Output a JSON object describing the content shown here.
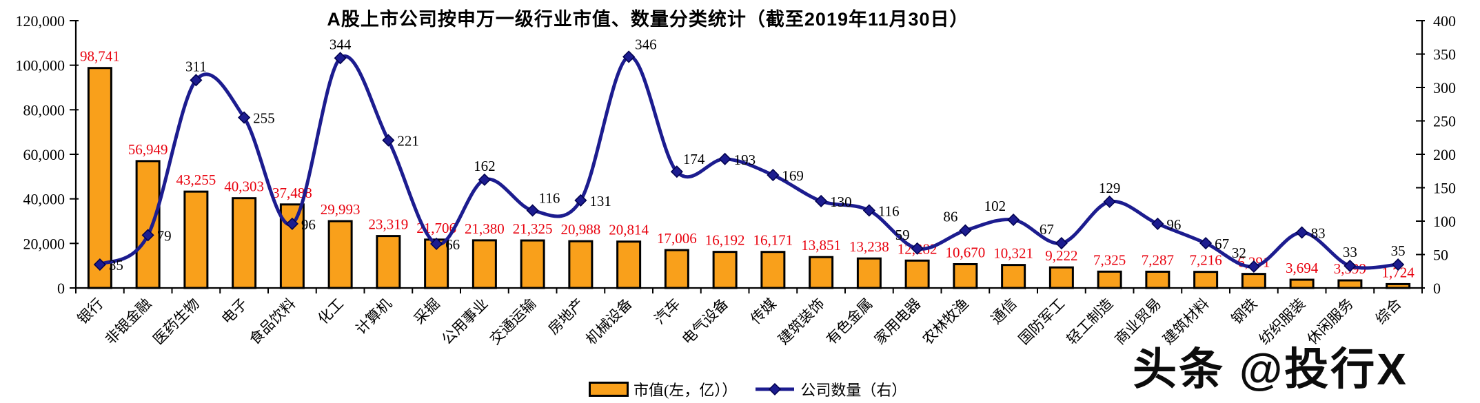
{
  "title": "A股上市公司按申万一级行业市值、数量分类统计（截至2019年11月30日）",
  "legend": {
    "bar_label": "市值(左，亿））",
    "line_label": "公司数量（右）"
  },
  "watermark": "头条 @投行X",
  "colors": {
    "bar_fill": "#F9A01B",
    "bar_border": "#000000",
    "line": "#1C1C8F",
    "marker_border": "#00004D",
    "bar_value_label": "#E8000D",
    "count_label": "#000000",
    "axis": "#000000"
  },
  "chart_data": {
    "type": "bar",
    "subtype": "bar+line combo, dual axis",
    "title": "A股上市公司按申万一级行业市值、数量分类统计（截至2019年11月30日）",
    "categories": [
      "银行",
      "非银金融",
      "医药生物",
      "电子",
      "食品饮料",
      "化工",
      "计算机",
      "采掘",
      "公用事业",
      "交通运输",
      "房地产",
      "机械设备",
      "汽车",
      "电气设备",
      "传媒",
      "建筑装饰",
      "有色金属",
      "家用电器",
      "农林牧渔",
      "通信",
      "国防军工",
      "轻工制造",
      "商业贸易",
      "建筑材料",
      "钢铁",
      "纺织服装",
      "休闲服务",
      "综合"
    ],
    "series": [
      {
        "name": "市值(左，亿））",
        "type": "bar",
        "axis": "left",
        "values": [
          98741,
          56949,
          43255,
          40303,
          37488,
          29993,
          23319,
          21706,
          21380,
          21325,
          20988,
          20814,
          17006,
          16192,
          16171,
          13851,
          13238,
          12282,
          10670,
          10321,
          9222,
          7325,
          7287,
          7216,
          6291,
          3694,
          3399,
          1724
        ]
      },
      {
        "name": "公司数量（右）",
        "type": "line",
        "axis": "right",
        "values": [
          35,
          79,
          311,
          255,
          96,
          344,
          221,
          66,
          162,
          116,
          131,
          346,
          174,
          193,
          169,
          130,
          116,
          59,
          86,
          102,
          67,
          129,
          96,
          67,
          32,
          83,
          33,
          35
        ]
      }
    ],
    "bar_value_labels": [
      "98,741",
      "56,949",
      "43,255",
      "40,303",
      "37,488",
      "29,993",
      "23,319",
      "21,706",
      "21,380",
      "21,325",
      "20,988",
      "20,814",
      "17,006",
      "16,192",
      "16,171",
      "13,851",
      "13,238",
      "12,282",
      "10,670",
      "10,321",
      "9,222",
      "7,325",
      "7,287",
      "7,216",
      "6,291",
      "3,694",
      "3,399",
      "1,724"
    ],
    "count_labels": [
      "35",
      "79",
      "311",
      "255",
      "96",
      "344",
      "221",
      "66",
      "162",
      "116",
      "131",
      "346",
      "174",
      "193",
      "169",
      "130",
      "116",
      "59",
      "86",
      "102",
      "67",
      "129",
      "96",
      "67",
      "32",
      "83",
      "33",
      "35"
    ],
    "count_label_pos": [
      "right",
      "right",
      "above",
      "right",
      "right",
      "above",
      "right",
      "right",
      "above",
      "above-right",
      "right",
      "above-right",
      "above-right",
      "right",
      "right",
      "right",
      "right",
      "above-left",
      "above-left",
      "above-left",
      "above-left",
      "above",
      "right",
      "right",
      "above-left",
      "right",
      "above",
      "above"
    ],
    "left_axis": {
      "min": 0,
      "max": 120000,
      "step": 20000,
      "tick_labels": [
        "0",
        "20,000",
        "40,000",
        "60,000",
        "80,000",
        "100,000",
        "120,000"
      ]
    },
    "right_axis": {
      "min": 0,
      "max": 400,
      "step": 50,
      "tick_labels": [
        "0",
        "50",
        "100",
        "150",
        "200",
        "250",
        "300",
        "350",
        "400"
      ]
    },
    "grid": false,
    "legend_position": "bottom-center",
    "xlabel": "",
    "ylabel": ""
  }
}
